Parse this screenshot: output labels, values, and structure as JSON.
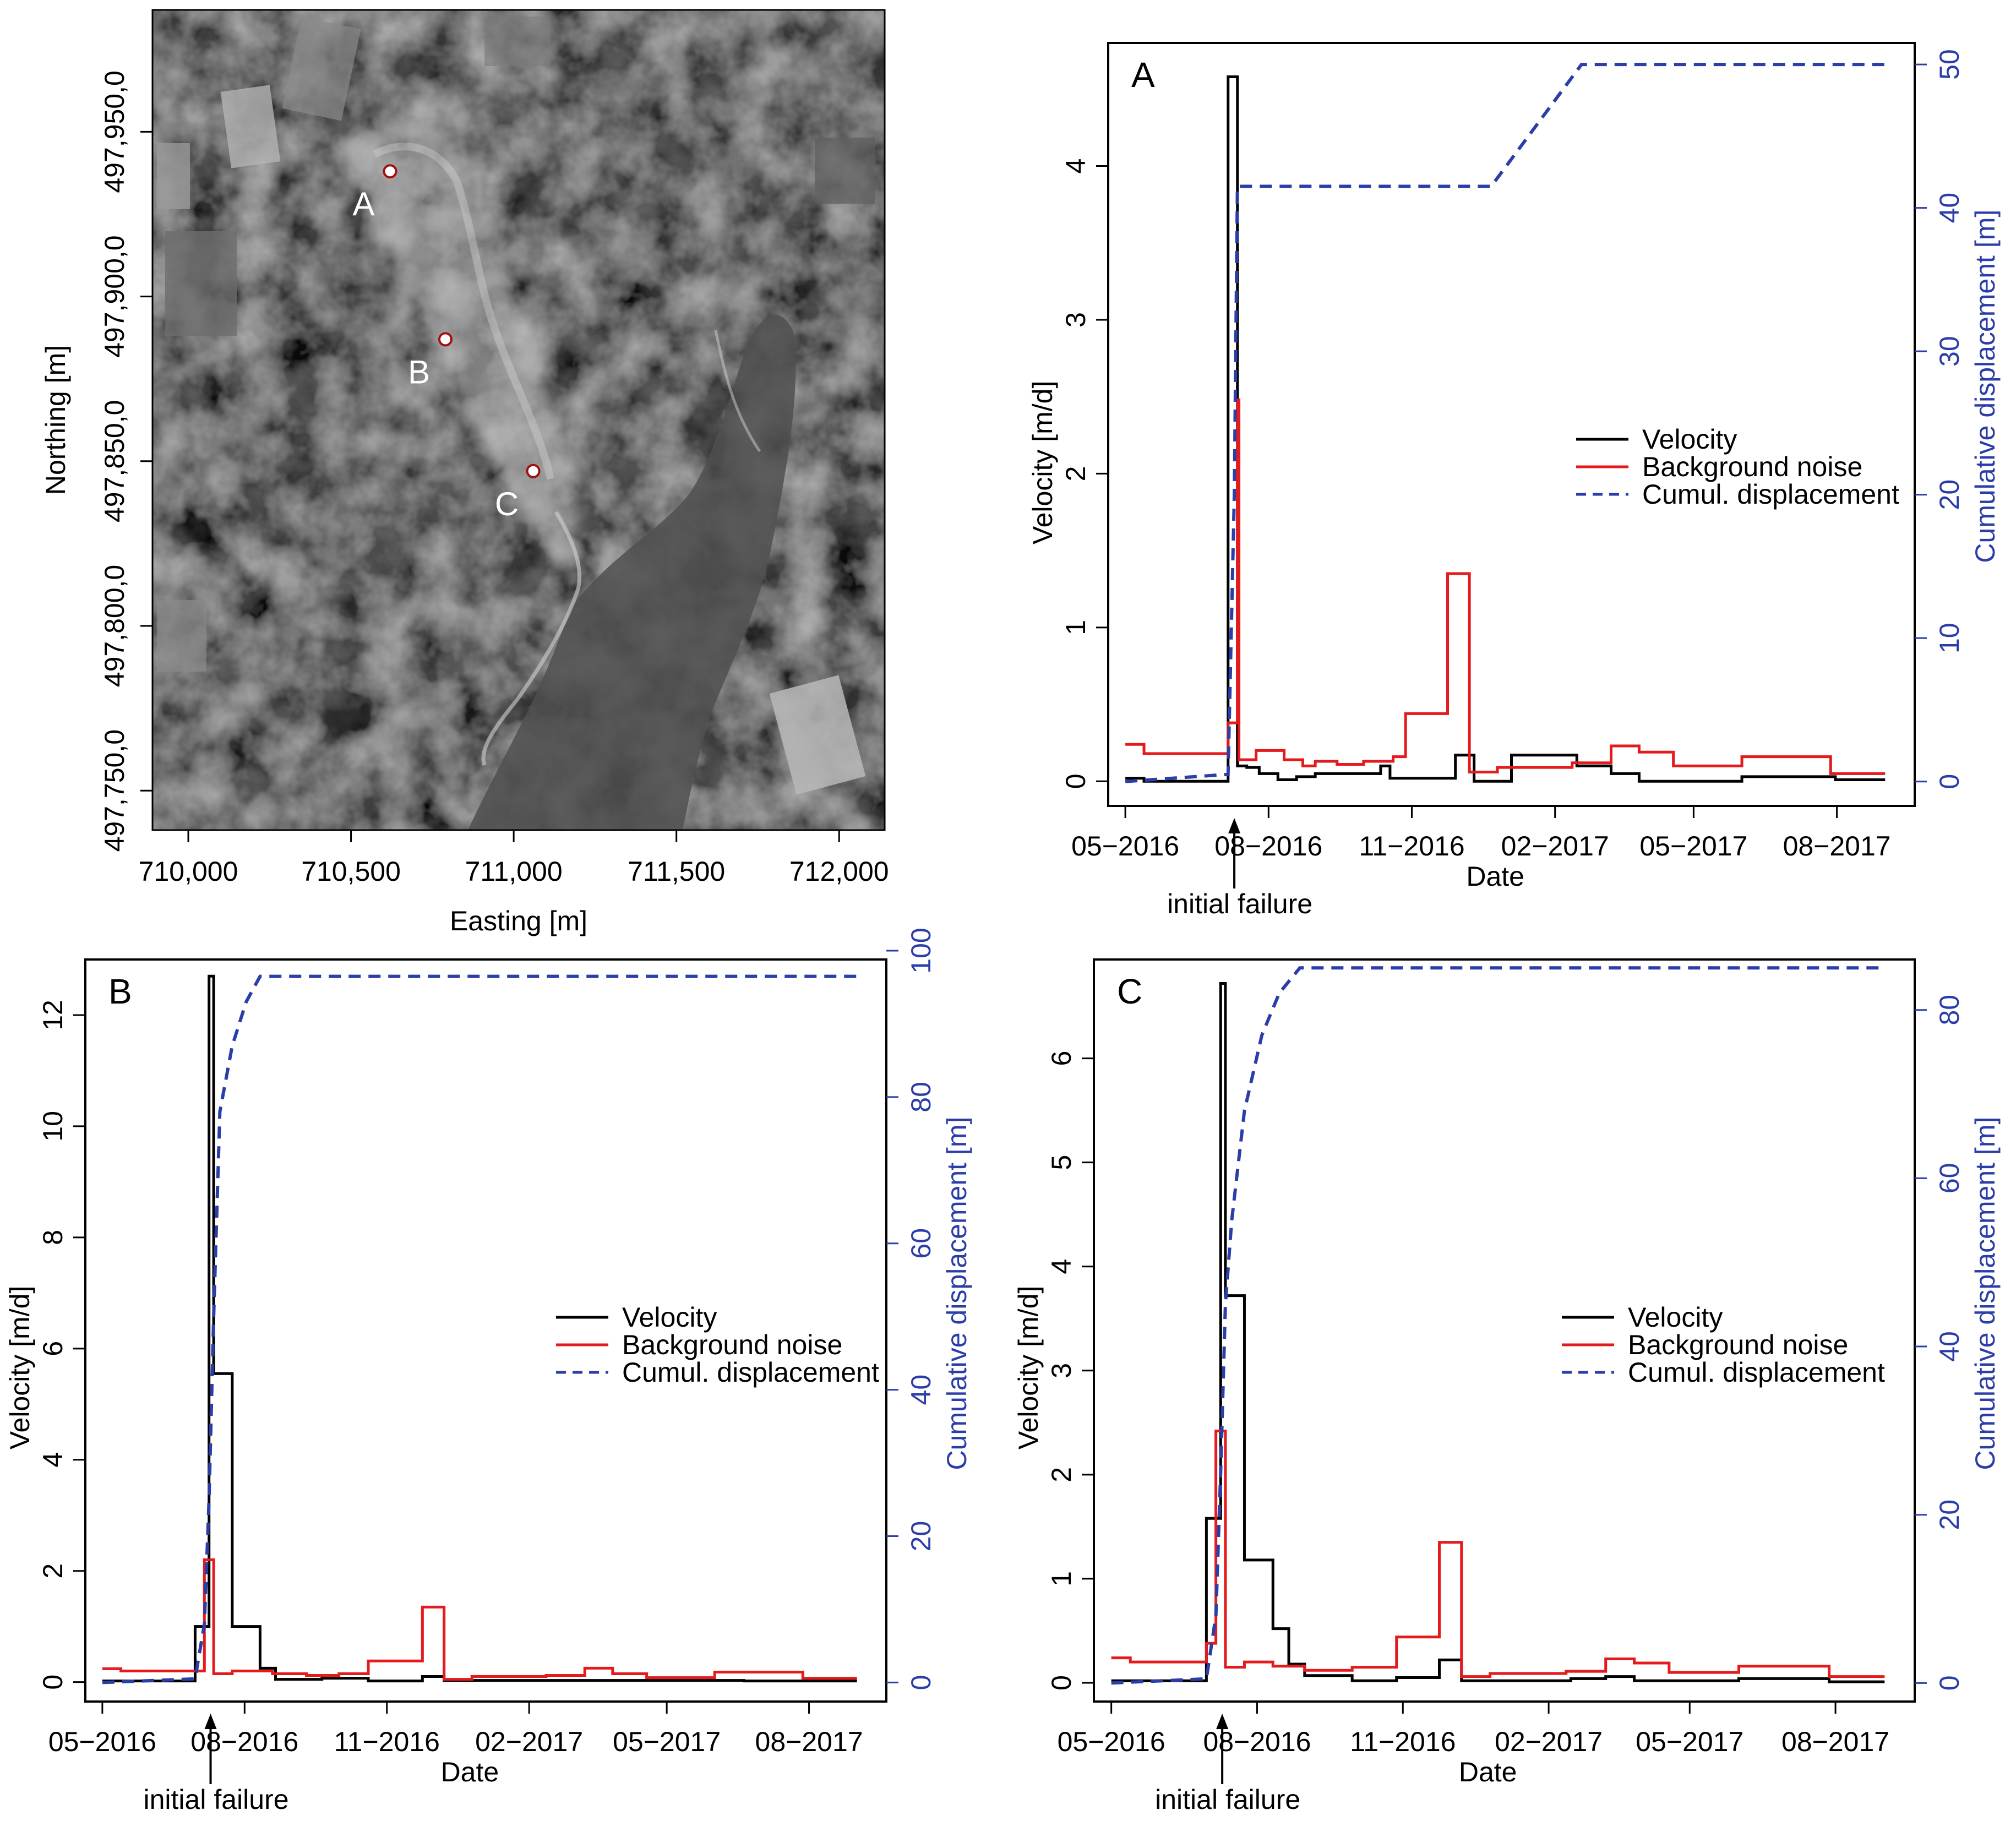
{
  "map": {
    "xlabel": "Easting [m]",
    "ylabel": "Northing [m]",
    "xticks": [
      "710,000",
      "710,500",
      "711,000",
      "711,500",
      "712,000"
    ],
    "yticks": [
      "497,750,0",
      "497,800,0",
      "497,850,0",
      "497,900,0",
      "497,950,0"
    ],
    "points": [
      {
        "label": "A",
        "easting": 710620,
        "northing": 497938
      },
      {
        "label": "B",
        "easting": 710790,
        "northing": 497887
      },
      {
        "label": "C",
        "easting": 711060,
        "northing": 497847
      }
    ],
    "xlim": [
      709890,
      712140
    ],
    "ylim": [
      497738,
      497987
    ]
  },
  "legend": {
    "velocity": "Velocity",
    "noise": "Background noise",
    "cumul": "Cumul. displacement"
  },
  "colors": {
    "velocity": "#000000",
    "noise": "#e41a1c",
    "cumul": "#2b3ea8",
    "right_axis": "#2b3ea8"
  },
  "chart_data": [
    {
      "type": "line",
      "panel_label": "A",
      "xlabel": "Date",
      "ylabel": "Velocity [m/d]",
      "y2label": "Cumulative displacement [m]",
      "annotation": "initial failure",
      "annotation_date": "2016-07-10",
      "x_ticks": [
        "05−2016",
        "08−2016",
        "11−2016",
        "02−2017",
        "05−2017",
        "08−2017"
      ],
      "xlim": [
        "2016-04-20",
        "2017-09-20"
      ],
      "ylim": [
        -0.16,
        4.8
      ],
      "yticks": [
        0,
        1,
        2,
        3,
        4
      ],
      "y2lim": [
        -1.7,
        51.5
      ],
      "y2ticks": [
        0,
        10,
        20,
        30,
        40,
        50
      ],
      "series": [
        {
          "name": "Velocity",
          "kind": "step",
          "points": [
            [
              "2016-05-01",
              0.02
            ],
            [
              "2016-05-13",
              0.0
            ],
            [
              "2016-07-06",
              4.58
            ],
            [
              "2016-07-12",
              0.1
            ],
            [
              "2016-07-18",
              0.09
            ],
            [
              "2016-07-26",
              0.05
            ],
            [
              "2016-08-07",
              0.01
            ],
            [
              "2016-08-19",
              0.03
            ],
            [
              "2016-08-31",
              0.05
            ],
            [
              "2016-10-12",
              0.1
            ],
            [
              "2016-10-18",
              0.02
            ],
            [
              "2016-11-29",
              0.17
            ],
            [
              "2016-12-11",
              0.0
            ],
            [
              "2017-01-04",
              0.17
            ],
            [
              "2017-02-15",
              0.1
            ],
            [
              "2017-03-09",
              0.05
            ],
            [
              "2017-03-27",
              0.0
            ],
            [
              "2017-06-01",
              0.03
            ],
            [
              "2017-07-31",
              0.01
            ],
            [
              "2017-09-01",
              0.01
            ]
          ]
        },
        {
          "name": "Background noise",
          "kind": "step",
          "points": [
            [
              "2016-05-01",
              0.24
            ],
            [
              "2016-05-13",
              0.18
            ],
            [
              "2016-07-06",
              0.38
            ],
            [
              "2016-07-12",
              2.48
            ],
            [
              "2016-07-13",
              0.14
            ],
            [
              "2016-07-24",
              0.2
            ],
            [
              "2016-08-11",
              0.14
            ],
            [
              "2016-08-23",
              0.1
            ],
            [
              "2016-08-31",
              0.13
            ],
            [
              "2016-09-14",
              0.11
            ],
            [
              "2016-10-01",
              0.13
            ],
            [
              "2016-10-20",
              0.16
            ],
            [
              "2016-10-28",
              0.44
            ],
            [
              "2016-11-24",
              1.35
            ],
            [
              "2016-12-08",
              0.06
            ],
            [
              "2016-12-26",
              0.09
            ],
            [
              "2017-02-12",
              0.12
            ],
            [
              "2017-03-09",
              0.23
            ],
            [
              "2017-03-27",
              0.19
            ],
            [
              "2017-04-18",
              0.1
            ],
            [
              "2017-06-01",
              0.16
            ],
            [
              "2017-07-28",
              0.05
            ],
            [
              "2017-09-01",
              0.05
            ]
          ]
        },
        {
          "name": "Cumul. displacement",
          "kind": "dashed",
          "axis": "right",
          "points": [
            [
              "2016-05-01",
              0
            ],
            [
              "2016-07-06",
              0.5
            ],
            [
              "2016-07-10",
              20
            ],
            [
              "2016-07-12",
              41.5
            ],
            [
              "2016-12-22",
              41.5
            ],
            [
              "2017-02-18",
              50
            ],
            [
              "2017-09-01",
              50
            ]
          ]
        }
      ]
    },
    {
      "type": "line",
      "panel_label": "B",
      "xlabel": "Date",
      "ylabel": "Velocity [m/d]",
      "y2label": "Cumulative displacement [m]",
      "annotation": "initial failure",
      "annotation_date": "2016-07-10",
      "x_ticks": [
        "05−2016",
        "08−2016",
        "11−2016",
        "02−2017",
        "05−2017",
        "08−2017"
      ],
      "xlim": [
        "2016-04-20",
        "2017-09-20"
      ],
      "ylim": [
        -0.35,
        13.0
      ],
      "yticks": [
        0,
        2,
        4,
        6,
        8,
        10,
        12
      ],
      "y2lim": [
        -2.6,
        98.8
      ],
      "y2ticks": [
        0,
        20,
        40,
        60,
        80,
        100
      ],
      "series": [
        {
          "name": "Velocity",
          "kind": "step",
          "points": [
            [
              "2016-05-01",
              0.02
            ],
            [
              "2016-06-30",
              1.0
            ],
            [
              "2016-07-09",
              12.7
            ],
            [
              "2016-07-12",
              5.55
            ],
            [
              "2016-07-24",
              1.0
            ],
            [
              "2016-08-11",
              0.25
            ],
            [
              "2016-08-21",
              0.05
            ],
            [
              "2016-09-20",
              0.07
            ],
            [
              "2016-10-20",
              0.02
            ],
            [
              "2016-11-24",
              0.1
            ],
            [
              "2016-12-08",
              0.03
            ],
            [
              "2017-02-15",
              0.03
            ],
            [
              "2017-06-20",
              0.02
            ],
            [
              "2017-09-01",
              0.02
            ]
          ]
        },
        {
          "name": "Background noise",
          "kind": "step",
          "points": [
            [
              "2016-05-01",
              0.24
            ],
            [
              "2016-05-13",
              0.2
            ],
            [
              "2016-07-06",
              2.2
            ],
            [
              "2016-07-12",
              0.15
            ],
            [
              "2016-07-24",
              0.2
            ],
            [
              "2016-08-19",
              0.15
            ],
            [
              "2016-09-10",
              0.12
            ],
            [
              "2016-10-01",
              0.15
            ],
            [
              "2016-10-20",
              0.38
            ],
            [
              "2016-11-24",
              1.35
            ],
            [
              "2016-12-08",
              0.05
            ],
            [
              "2016-12-26",
              0.1
            ],
            [
              "2017-02-12",
              0.12
            ],
            [
              "2017-03-09",
              0.25
            ],
            [
              "2017-03-27",
              0.15
            ],
            [
              "2017-04-18",
              0.08
            ],
            [
              "2017-06-01",
              0.18
            ],
            [
              "2017-07-28",
              0.07
            ],
            [
              "2017-09-01",
              0.07
            ]
          ]
        },
        {
          "name": "Cumul. displacement",
          "kind": "dashed",
          "axis": "right",
          "points": [
            [
              "2016-05-01",
              0
            ],
            [
              "2016-06-30",
              0.5
            ],
            [
              "2016-07-06",
              8
            ],
            [
              "2016-07-09",
              25
            ],
            [
              "2016-07-12",
              50
            ],
            [
              "2016-07-16",
              78
            ],
            [
              "2016-07-24",
              87
            ],
            [
              "2016-08-02",
              93
            ],
            [
              "2016-08-11",
              96.5
            ],
            [
              "2017-09-01",
              96.5
            ]
          ]
        }
      ]
    },
    {
      "type": "line",
      "panel_label": "C",
      "xlabel": "Date",
      "ylabel": "Velocity [m/d]",
      "y2label": "Cumulative displacement [m]",
      "annotation": "initial failure",
      "annotation_date": "2016-07-10",
      "x_ticks": [
        "05−2016",
        "08−2016",
        "11−2016",
        "02−2017",
        "05−2017",
        "08−2017"
      ],
      "xlim": [
        "2016-04-20",
        "2017-09-20"
      ],
      "ylim": [
        -0.18,
        6.95
      ],
      "yticks": [
        0,
        1,
        2,
        3,
        4,
        5,
        6
      ],
      "y2lim": [
        -2.2,
        86.0
      ],
      "y2ticks": [
        0,
        20,
        40,
        60,
        80
      ],
      "series": [
        {
          "name": "Velocity",
          "kind": "step",
          "points": [
            [
              "2016-05-01",
              0.02
            ],
            [
              "2016-06-30",
              1.58
            ],
            [
              "2016-07-09",
              6.72
            ],
            [
              "2016-07-12",
              3.72
            ],
            [
              "2016-07-24",
              1.18
            ],
            [
              "2016-08-11",
              0.52
            ],
            [
              "2016-08-21",
              0.18
            ],
            [
              "2016-08-31",
              0.07
            ],
            [
              "2016-09-30",
              0.02
            ],
            [
              "2016-10-28",
              0.05
            ],
            [
              "2016-11-24",
              0.22
            ],
            [
              "2016-12-08",
              0.02
            ],
            [
              "2017-02-15",
              0.04
            ],
            [
              "2017-03-09",
              0.06
            ],
            [
              "2017-03-27",
              0.02
            ],
            [
              "2017-06-01",
              0.04
            ],
            [
              "2017-07-28",
              0.01
            ],
            [
              "2017-09-01",
              0.01
            ]
          ]
        },
        {
          "name": "Background noise",
          "kind": "step",
          "points": [
            [
              "2016-05-01",
              0.24
            ],
            [
              "2016-05-13",
              0.2
            ],
            [
              "2016-06-30",
              0.38
            ],
            [
              "2016-07-06",
              2.42
            ],
            [
              "2016-07-12",
              0.15
            ],
            [
              "2016-07-24",
              0.2
            ],
            [
              "2016-08-11",
              0.16
            ],
            [
              "2016-08-31",
              0.12
            ],
            [
              "2016-09-30",
              0.15
            ],
            [
              "2016-10-28",
              0.44
            ],
            [
              "2016-11-24",
              1.35
            ],
            [
              "2016-12-08",
              0.06
            ],
            [
              "2016-12-26",
              0.09
            ],
            [
              "2017-02-12",
              0.11
            ],
            [
              "2017-03-09",
              0.23
            ],
            [
              "2017-03-27",
              0.19
            ],
            [
              "2017-04-18",
              0.1
            ],
            [
              "2017-06-01",
              0.16
            ],
            [
              "2017-07-28",
              0.06
            ],
            [
              "2017-09-01",
              0.06
            ]
          ]
        },
        {
          "name": "Cumul. displacement",
          "kind": "dashed",
          "axis": "right",
          "points": [
            [
              "2016-05-01",
              0
            ],
            [
              "2016-06-30",
              0.5
            ],
            [
              "2016-07-06",
              8
            ],
            [
              "2016-07-09",
              25
            ],
            [
              "2016-07-12",
              45
            ],
            [
              "2016-07-16",
              55
            ],
            [
              "2016-07-24",
              68
            ],
            [
              "2016-08-04",
              77
            ],
            [
              "2016-08-15",
              82
            ],
            [
              "2016-08-28",
              85
            ],
            [
              "2017-09-01",
              85
            ]
          ]
        }
      ]
    }
  ]
}
